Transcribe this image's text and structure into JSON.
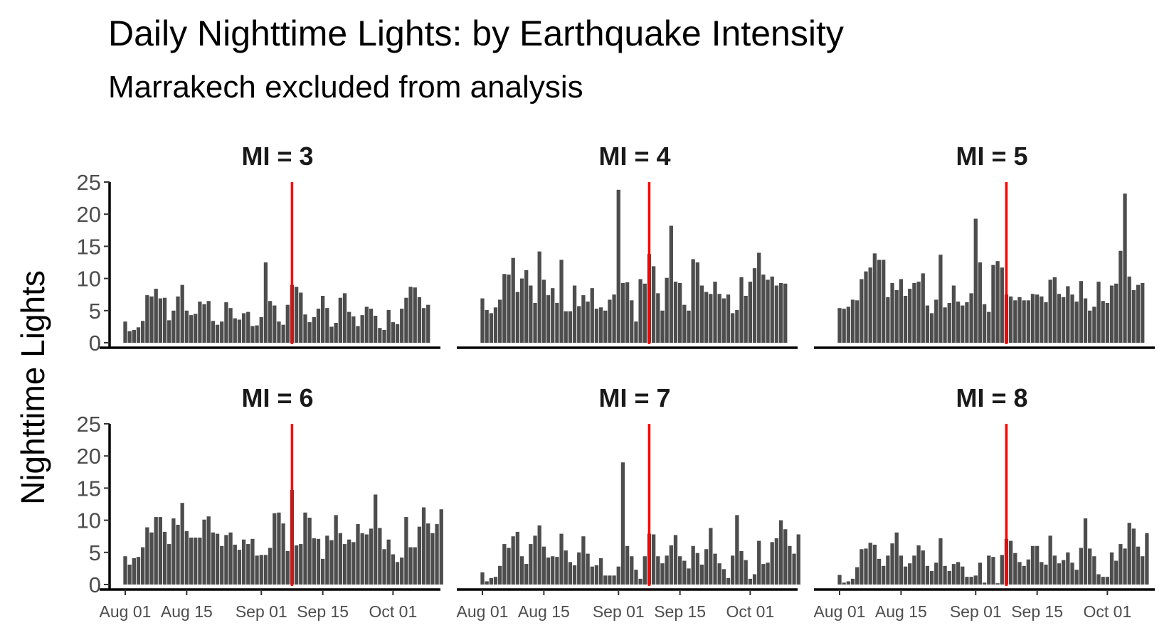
{
  "title": "Daily Nighttime Lights: by Earthquake Intensity",
  "subtitle": "Marrakech excluded from analysis",
  "chart_data": {
    "type": "bar",
    "title": "Daily Nighttime Lights: by Earthquake Intensity",
    "subtitle": "Marrakech excluded from analysis",
    "ylabel": "Nighttime Lights",
    "xlabel": "",
    "ylim": [
      0,
      25
    ],
    "y_ticks": [
      "0",
      "5",
      "10",
      "15",
      "20",
      "25"
    ],
    "x_tick_labels": [
      "Aug 01",
      "Aug 15",
      "Sep 01",
      "Sep 15",
      "Oct 01"
    ],
    "x_tick_dates": [
      "2023-08-01",
      "2023-08-15",
      "2023-09-01",
      "2023-09-15",
      "2023-10-01"
    ],
    "x_start": "2023-08-01",
    "bar_color": "#4d4d4d",
    "event_line": {
      "date": "2023-09-08",
      "color": "#ff0000"
    },
    "grid": false,
    "layout": "facet 2 rows x 3 columns",
    "facets": [
      {
        "label": "MI = 3",
        "values": [
          3.3,
          1.8,
          2.0,
          2.4,
          3.4,
          7.4,
          7.2,
          8.4,
          6.9,
          7.0,
          3.5,
          5.0,
          7.2,
          9.0,
          5.0,
          4.3,
          4.5,
          6.4,
          6.0,
          6.5,
          3.4,
          2.8,
          3.3,
          6.3,
          5.4,
          3.8,
          3.6,
          4.6,
          4.8,
          2.6,
          2.7,
          4.0,
          12.5,
          6.5,
          5.8,
          3.3,
          2.8,
          5.9,
          9.0,
          8.7,
          7.8,
          4.4,
          3.2,
          4.0,
          5.3,
          7.3,
          5.4,
          2.5,
          3.1,
          7.0,
          7.7,
          4.8,
          4.1,
          2.6,
          4.3,
          5.6,
          5.3,
          4.2,
          2.3,
          2.0,
          5.1,
          3.2,
          2.9,
          5.3,
          7.0,
          8.7,
          8.6,
          7.1,
          5.4,
          5.9
        ]
      },
      {
        "label": "MI = 4",
        "values": [
          6.9,
          5.1,
          4.6,
          5.5,
          6.7,
          10.7,
          10.6,
          13.2,
          7.9,
          10.0,
          11.3,
          8.9,
          6.2,
          14.2,
          9.8,
          7.4,
          8.5,
          6.2,
          12.9,
          4.9,
          4.9,
          8.9,
          5.7,
          7.4,
          6.4,
          8.5,
          5.3,
          5.5,
          5.0,
          6.7,
          7.5,
          23.8,
          9.3,
          9.4,
          6.6,
          3.3,
          9.9,
          9.2,
          13.8,
          11.9,
          7.7,
          5.0,
          10.1,
          18.2,
          9.5,
          9.3,
          5.9,
          5.0,
          13.0,
          12.5,
          8.9,
          7.9,
          7.6,
          9.5,
          7.6,
          6.9,
          7.5,
          4.6,
          5.1,
          10.2,
          7.3,
          9.5,
          11.6,
          14.0,
          10.6,
          9.8,
          10.3,
          8.9,
          9.3,
          9.2
        ]
      },
      {
        "label": "MI = 5",
        "values": [
          5.4,
          5.3,
          5.6,
          6.7,
          6.6,
          9.9,
          11.1,
          11.7,
          13.9,
          12.9,
          12.9,
          7.1,
          9.3,
          8.2,
          9.9,
          7.3,
          8.4,
          9.3,
          9.5,
          10.8,
          5.8,
          4.6,
          6.7,
          13.7,
          5.5,
          6.2,
          8.9,
          6.4,
          5.8,
          6.3,
          7.7,
          19.3,
          12.5,
          6.0,
          4.8,
          12.1,
          12.7,
          11.7,
          7.5,
          7.2,
          6.6,
          7.1,
          6.6,
          6.6,
          7.6,
          7.5,
          7.2,
          6.3,
          9.8,
          10.2,
          7.6,
          7.1,
          8.8,
          7.5,
          6.4,
          9.6,
          6.9,
          5.0,
          5.6,
          9.5,
          6.5,
          6.2,
          8.9,
          9.2,
          14.3,
          23.2,
          10.3,
          8.2,
          9.0,
          9.3
        ]
      },
      {
        "label": "MI = 6",
        "values": [
          4.4,
          3.1,
          4.1,
          4.3,
          5.8,
          8.9,
          8.1,
          10.5,
          10.5,
          8.2,
          6.3,
          10.3,
          9.3,
          12.7,
          8.3,
          7.3,
          7.3,
          7.3,
          10.1,
          10.6,
          8.1,
          7.9,
          6.0,
          7.7,
          8.1,
          6.2,
          5.4,
          7.0,
          6.3,
          7.1,
          4.5,
          4.6,
          4.6,
          5.7,
          11.1,
          11.2,
          9.5,
          5.2,
          14.7,
          6.1,
          6.3,
          11.2,
          10.4,
          7.2,
          7.1,
          4.0,
          7.6,
          6.9,
          10.8,
          8.0,
          6.3,
          7.0,
          6.6,
          9.4,
          8.0,
          7.8,
          8.7,
          14.0,
          8.8,
          5.5,
          7.0,
          4.7,
          3.5,
          4.2,
          10.5,
          5.8,
          5.8,
          9.0,
          12.0,
          9.5,
          8.0,
          9.4,
          11.7
        ]
      },
      {
        "label": "MI = 7",
        "values": [
          1.9,
          0.5,
          1.0,
          1.2,
          2.9,
          6.3,
          5.7,
          7.5,
          8.2,
          4.4,
          3.2,
          6.3,
          7.6,
          9.2,
          5.9,
          4.2,
          4.4,
          4.3,
          7.9,
          5.3,
          3.5,
          3.0,
          5.0,
          7.5,
          4.8,
          2.8,
          3.0,
          4.1,
          1.4,
          1.4,
          1.4,
          2.8,
          19.0,
          6.0,
          4.4,
          2.3,
          0.9,
          4.4,
          7.9,
          7.8,
          4.4,
          3.3,
          4.5,
          6.1,
          7.7,
          4.4,
          3.7,
          2.5,
          6.0,
          4.9,
          3.1,
          5.5,
          8.8,
          4.8,
          3.3,
          2.4,
          1.0,
          4.5,
          10.8,
          5.2,
          3.8,
          0.9,
          1.6,
          6.8,
          3.2,
          3.4,
          6.6,
          7.2,
          10.0,
          8.6,
          6.0,
          4.8,
          7.8
        ]
      },
      {
        "label": "MI = 8",
        "values": [
          1.5,
          0.3,
          0.5,
          0.9,
          2.7,
          5.5,
          5.6,
          6.5,
          6.2,
          4.0,
          2.9,
          4.5,
          6.4,
          8.1,
          4.5,
          2.8,
          3.3,
          4.5,
          6.1,
          5.3,
          2.9,
          2.1,
          3.4,
          7.2,
          2.9,
          2.1,
          3.2,
          3.5,
          2.8,
          1.2,
          1.2,
          1.4,
          3.4,
          0.3,
          4.5,
          4.3,
          0.2,
          4.6,
          7.1,
          6.8,
          4.9,
          3.5,
          2.9,
          3.9,
          6.0,
          6.0,
          3.5,
          3.1,
          7.6,
          4.5,
          3.3,
          3.8,
          5.0,
          3.4,
          2.3,
          5.7,
          10.3,
          5.6,
          4.4,
          1.6,
          1.2,
          1.2,
          5.0,
          3.7,
          6.3,
          5.6,
          9.6,
          8.7,
          5.9,
          4.4,
          8.0
        ]
      }
    ]
  }
}
